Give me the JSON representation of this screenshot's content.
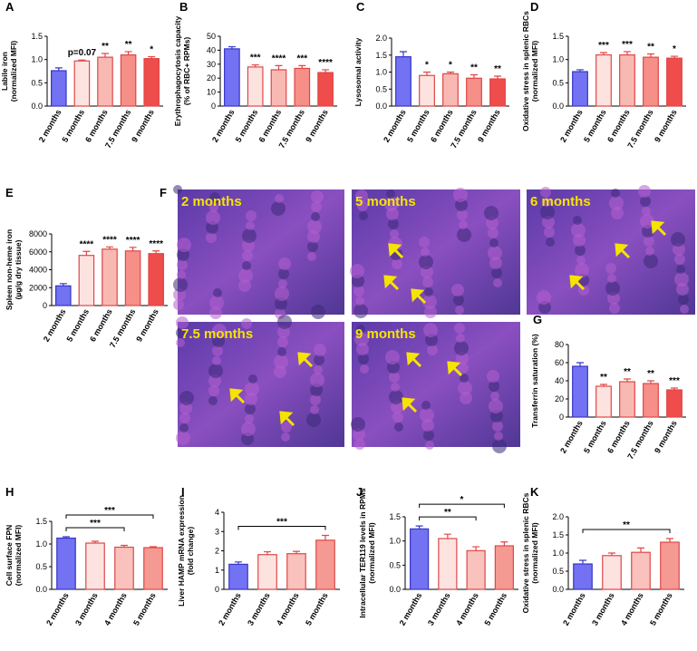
{
  "chart_data": [
    {
      "type": "bar",
      "panel": "A",
      "ylabel": [
        "Labile iron",
        "(normalized MFI)"
      ],
      "categories": [
        "2 months",
        "5 months",
        "6 months",
        "7.5 months",
        "9 months"
      ],
      "values": [
        0.76,
        0.97,
        1.05,
        1.1,
        1.02
      ],
      "errors": [
        0.06,
        0.02,
        0.08,
        0.07,
        0.04
      ],
      "colors": [
        "#7272f2",
        "#fde3e0",
        "#f9b9b3",
        "#f58f88",
        "#ef4c4c"
      ],
      "ylim": [
        0,
        1.5
      ],
      "yticks": [
        {
          "value": 0,
          "label": "0.0"
        },
        {
          "value": 0.5,
          "label": "0.5"
        },
        {
          "value": 1.0,
          "label": "1.0"
        },
        {
          "value": 1.5,
          "label": "1.5"
        }
      ],
      "annotations": [
        null,
        "p=0.07",
        "**",
        "**",
        "*"
      ]
    },
    {
      "type": "bar",
      "panel": "B",
      "ylabel": [
        "Erythrophagocytosis capacity",
        "(% of RBC+ RPMs)"
      ],
      "categories": [
        "2 months",
        "5 months",
        "6 months",
        "7.5 months",
        "9 months"
      ],
      "values": [
        41,
        28,
        26,
        27,
        24
      ],
      "errors": [
        1.5,
        1.5,
        3,
        2,
        2
      ],
      "colors": [
        "#7272f2",
        "#fde3e0",
        "#f9b9b3",
        "#f58f88",
        "#ef4c4c"
      ],
      "ylim": [
        0,
        50
      ],
      "yticks": [
        0,
        10,
        20,
        30,
        40,
        50
      ],
      "annotations": [
        null,
        "***",
        "****",
        "***",
        "****"
      ]
    },
    {
      "type": "bar",
      "panel": "C",
      "ylabel": [
        "Lysosomal activity"
      ],
      "categories": [
        "2 months",
        "5 months",
        "6 months",
        "7.5 months",
        "9 months"
      ],
      "values": [
        1.45,
        0.9,
        0.95,
        0.82,
        0.8
      ],
      "errors": [
        0.15,
        0.1,
        0.05,
        0.1,
        0.08
      ],
      "colors": [
        "#7272f2",
        "#fde3e0",
        "#f9b9b3",
        "#f58f88",
        "#ef4c4c"
      ],
      "ylim": [
        0,
        2.0
      ],
      "yticks": [
        {
          "value": 0,
          "label": "0.0"
        },
        {
          "value": 0.5,
          "label": "0.5"
        },
        {
          "value": 1.0,
          "label": "1.0"
        },
        {
          "value": 1.5,
          "label": "1.5"
        },
        {
          "value": 2.0,
          "label": "2.0"
        }
      ],
      "annotations": [
        null,
        "*",
        "*",
        "**",
        "**"
      ]
    },
    {
      "type": "bar",
      "panel": "D",
      "ylabel": [
        "Oxidative stress in splenic RBCs",
        "(normalized MFI)"
      ],
      "categories": [
        "2 months",
        "5 months",
        "6 months",
        "7.5 months",
        "9 months"
      ],
      "values": [
        0.74,
        1.1,
        1.1,
        1.05,
        1.03
      ],
      "errors": [
        0.04,
        0.05,
        0.07,
        0.07,
        0.04
      ],
      "colors": [
        "#7272f2",
        "#fde3e0",
        "#f9b9b3",
        "#f58f88",
        "#ef4c4c"
      ],
      "ylim": [
        0,
        1.5
      ],
      "yticks": [
        {
          "value": 0,
          "label": "0.0"
        },
        {
          "value": 0.5,
          "label": "0.5"
        },
        {
          "value": 1.0,
          "label": "1.0"
        },
        {
          "value": 1.5,
          "label": "1.5"
        }
      ],
      "annotations": [
        null,
        "***",
        "***",
        "**",
        "*"
      ]
    },
    {
      "type": "bar",
      "panel": "E",
      "ylabel": [
        "Spleen non-heme iron",
        "(µg/g dry tissue)"
      ],
      "categories": [
        "2 months",
        "5 months",
        "6 months",
        "7.5 months",
        "9 months"
      ],
      "values": [
        2200,
        5600,
        6300,
        6100,
        5800
      ],
      "errors": [
        250,
        450,
        250,
        400,
        300
      ],
      "colors": [
        "#7272f2",
        "#fde3e0",
        "#f9b9b3",
        "#f58f88",
        "#ef4c4c"
      ],
      "ylim": [
        0,
        8000
      ],
      "yticks": [
        0,
        2000,
        4000,
        6000,
        8000
      ],
      "annotations": [
        null,
        "****",
        "****",
        "****",
        "****"
      ]
    },
    {
      "type": "image",
      "panel": "F",
      "images": [
        "2 months",
        "5 months",
        "6 months",
        "7.5 months",
        "9 months"
      ]
    },
    {
      "type": "bar",
      "panel": "G",
      "ylabel": [
        "Transferrin saturation (%)"
      ],
      "categories": [
        "2 months",
        "5 months",
        "6 months",
        "7.5 months",
        "9 months"
      ],
      "values": [
        56,
        34,
        39,
        37,
        30
      ],
      "errors": [
        4,
        2,
        3,
        3,
        2
      ],
      "colors": [
        "#7272f2",
        "#fde3e0",
        "#f9b9b3",
        "#f58f88",
        "#ef4c4c"
      ],
      "ylim": [
        0,
        80
      ],
      "yticks": [
        0,
        20,
        40,
        60,
        80
      ],
      "annotations": [
        null,
        "**",
        "**",
        "**",
        "***"
      ]
    },
    {
      "type": "bar",
      "panel": "H",
      "ylabel": [
        "Cell surface FPN",
        "(normalized MFI)"
      ],
      "categories": [
        "2 months",
        "3 months",
        "4 months",
        "5 months"
      ],
      "values": [
        1.13,
        1.02,
        0.93,
        0.92
      ],
      "errors": [
        0.03,
        0.04,
        0.04,
        0.02
      ],
      "colors": [
        "#7272f2",
        "#fde3e0",
        "#f9c2bc",
        "#f59a92"
      ],
      "ylim": [
        0,
        1.5
      ],
      "yticks": [
        {
          "value": 0,
          "label": "0.0"
        },
        {
          "value": 0.5,
          "label": "0.5"
        },
        {
          "value": 1.0,
          "label": "1.0"
        },
        {
          "value": 1.5,
          "label": "1.5"
        }
      ],
      "brackets": [
        {
          "from": "2 months",
          "to": "4 months",
          "label": "***"
        },
        {
          "from": "2 months",
          "to": "5 months",
          "label": "***"
        }
      ]
    },
    {
      "type": "bar",
      "panel": "I",
      "ylabel": [
        "Liver HAMP mRNA expression",
        "(fold change)"
      ],
      "categories": [
        "2 months",
        "3 months",
        "4 months",
        "5 months"
      ],
      "values": [
        1.3,
        1.8,
        1.85,
        2.55
      ],
      "errors": [
        0.12,
        0.15,
        0.12,
        0.25
      ],
      "colors": [
        "#7272f2",
        "#fde3e0",
        "#f9c2bc",
        "#f59a92"
      ],
      "ylim": [
        0,
        4
      ],
      "yticks": [
        0,
        1,
        2,
        3,
        4
      ],
      "brackets": [
        {
          "from": "2 months",
          "to": "5 months",
          "label": "***"
        }
      ]
    },
    {
      "type": "bar",
      "panel": "J",
      "ylabel": [
        "Intracellular TER119 levels in RPMs",
        "(normalized MFI)"
      ],
      "categories": [
        "2 months",
        "3 months",
        "4 months",
        "5 months"
      ],
      "values": [
        1.25,
        1.05,
        0.8,
        0.9
      ],
      "errors": [
        0.06,
        0.09,
        0.08,
        0.08
      ],
      "colors": [
        "#7272f2",
        "#fde3e0",
        "#f9c2bc",
        "#f59a92"
      ],
      "ylim": [
        0,
        1.5
      ],
      "yticks": [
        {
          "value": 0,
          "label": "0.0"
        },
        {
          "value": 0.5,
          "label": "0.5"
        },
        {
          "value": 1.0,
          "label": "1.0"
        },
        {
          "value": 1.5,
          "label": "1.5"
        }
      ],
      "brackets": [
        {
          "from": "2 months",
          "to": "4 months",
          "label": "**"
        },
        {
          "from": "2 months",
          "to": "5 months",
          "label": "*"
        }
      ]
    },
    {
      "type": "bar",
      "panel": "K",
      "ylabel": [
        "Oxidative stress in splenic RBCs",
        "(normalized MFI)"
      ],
      "categories": [
        "2 months",
        "3 months",
        "4 months",
        "5 months"
      ],
      "values": [
        0.7,
        0.93,
        1.02,
        1.3
      ],
      "errors": [
        0.1,
        0.07,
        0.12,
        0.1
      ],
      "colors": [
        "#7272f2",
        "#fde3e0",
        "#f9c2bc",
        "#f59a92"
      ],
      "ylim": [
        0,
        2.0
      ],
      "yticks": [
        {
          "value": 0,
          "label": "0.0"
        },
        {
          "value": 0.5,
          "label": "0.5"
        },
        {
          "value": 1.0,
          "label": "1.0"
        },
        {
          "value": 1.5,
          "label": "1.5"
        },
        {
          "value": 2.0,
          "label": "2.0"
        }
      ],
      "brackets": [
        {
          "from": "2 months",
          "to": "5 months",
          "label": "**"
        }
      ]
    }
  ]
}
